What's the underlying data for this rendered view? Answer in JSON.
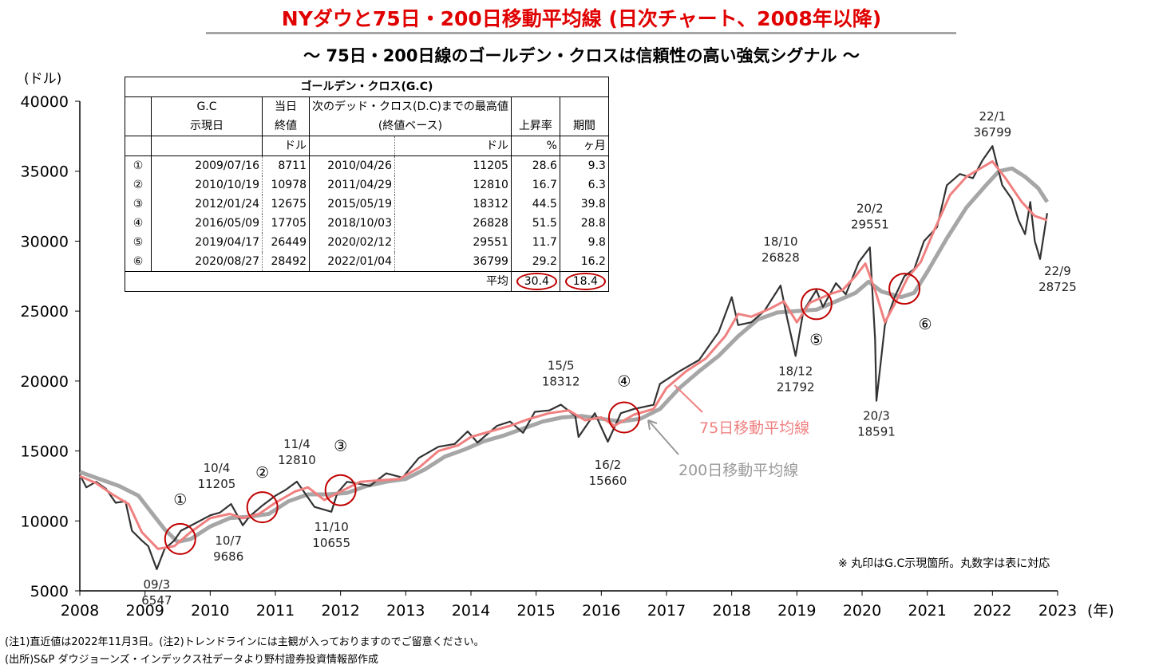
{
  "header": {
    "title": "NYダウと75日・200日移動平均線 (日次チャート、2008年以降)",
    "subtitle": "～ 75日・200日線のゴールデン・クロスは信頼性の高い強気シグナル ～"
  },
  "table": {
    "caption": "ゴールデン・クロス(G.C)",
    "h_gc": "G.C",
    "h_gc2": "示現日",
    "h_close": "当日",
    "h_close2": "終値",
    "h_high": "次のデッド・クロス(D.C)までの最高値",
    "h_high2": "(終値ベース)",
    "h_rise": "上昇率",
    "h_period": "期間",
    "u_doru1": "ドル",
    "u_doru2": "ドル",
    "u_pct": "%",
    "u_month": "ヶ月",
    "rows": [
      {
        "no": "①",
        "date": "2009/07/16",
        "close": "8711",
        "hdate": "2010/04/26",
        "high": "11205",
        "rise": "28.6",
        "months": "9.3"
      },
      {
        "no": "②",
        "date": "2010/10/19",
        "close": "10978",
        "hdate": "2011/04/29",
        "high": "12810",
        "rise": "16.7",
        "months": "6.3"
      },
      {
        "no": "③",
        "date": "2012/01/24",
        "close": "12675",
        "hdate": "2015/05/19",
        "high": "18312",
        "rise": "44.5",
        "months": "39.8"
      },
      {
        "no": "④",
        "date": "2016/05/09",
        "close": "17705",
        "hdate": "2018/10/03",
        "high": "26828",
        "rise": "51.5",
        "months": "28.8"
      },
      {
        "no": "⑤",
        "date": "2019/04/17",
        "close": "26449",
        "hdate": "2020/02/12",
        "high": "29551",
        "rise": "11.7",
        "months": "9.8"
      },
      {
        "no": "⑥",
        "date": "2020/08/27",
        "close": "28492",
        "hdate": "2022/01/04",
        "high": "36799",
        "rise": "29.2",
        "months": "16.2"
      }
    ],
    "avg_label": "平均",
    "avg_rise": "30.4",
    "avg_months": "18.4"
  },
  "chart_data": {
    "type": "line",
    "ylabel": "(ドル)",
    "xlabel": "(年)",
    "ylim": [
      5000,
      40000
    ],
    "yticks": [
      "5000",
      "10000",
      "15000",
      "20000",
      "25000",
      "30000",
      "35000",
      "40000"
    ],
    "xlim": [
      2008,
      2023
    ],
    "xticks": [
      "2008",
      "2009",
      "2010",
      "2011",
      "2012",
      "2013",
      "2014",
      "2015",
      "2016",
      "2017",
      "2018",
      "2019",
      "2020",
      "2021",
      "2022",
      "2023"
    ],
    "grid": false,
    "series": [
      {
        "name": "75日移動平均線",
        "color": "#f08080",
        "points": [
          [
            2008.0,
            13200
          ],
          [
            2008.25,
            12700
          ],
          [
            2008.5,
            11900
          ],
          [
            2008.75,
            11200
          ],
          [
            2008.95,
            9200
          ],
          [
            2009.2,
            8000
          ],
          [
            2009.45,
            8200
          ],
          [
            2009.7,
            9200
          ],
          [
            2010.0,
            10200
          ],
          [
            2010.3,
            10500
          ],
          [
            2010.5,
            10200
          ],
          [
            2010.75,
            10500
          ],
          [
            2011.0,
            11300
          ],
          [
            2011.3,
            12100
          ],
          [
            2011.5,
            12400
          ],
          [
            2011.75,
            11500
          ],
          [
            2012.0,
            12100
          ],
          [
            2012.3,
            12800
          ],
          [
            2012.6,
            12900
          ],
          [
            2012.9,
            13000
          ],
          [
            2013.2,
            13800
          ],
          [
            2013.5,
            15000
          ],
          [
            2013.8,
            15400
          ],
          [
            2014.0,
            16000
          ],
          [
            2014.3,
            16400
          ],
          [
            2014.6,
            16800
          ],
          [
            2014.9,
            17300
          ],
          [
            2015.2,
            17700
          ],
          [
            2015.5,
            17900
          ],
          [
            2015.75,
            17200
          ],
          [
            2016.0,
            17400
          ],
          [
            2016.2,
            16800
          ],
          [
            2016.5,
            17600
          ],
          [
            2016.8,
            18000
          ],
          [
            2017.0,
            19500
          ],
          [
            2017.3,
            20700
          ],
          [
            2017.6,
            21600
          ],
          [
            2017.9,
            23200
          ],
          [
            2018.1,
            24800
          ],
          [
            2018.3,
            24600
          ],
          [
            2018.6,
            25200
          ],
          [
            2018.8,
            25700
          ],
          [
            2019.0,
            24200
          ],
          [
            2019.2,
            25600
          ],
          [
            2019.5,
            26200
          ],
          [
            2019.7,
            26500
          ],
          [
            2019.9,
            27500
          ],
          [
            2020.05,
            28400
          ],
          [
            2020.2,
            26500
          ],
          [
            2020.35,
            24200
          ],
          [
            2020.5,
            25500
          ],
          [
            2020.7,
            27400
          ],
          [
            2020.9,
            28500
          ],
          [
            2021.1,
            30700
          ],
          [
            2021.35,
            33300
          ],
          [
            2021.6,
            34600
          ],
          [
            2021.85,
            35300
          ],
          [
            2022.0,
            35700
          ],
          [
            2022.2,
            34500
          ],
          [
            2022.45,
            32800
          ],
          [
            2022.65,
            31800
          ],
          [
            2022.84,
            31500
          ]
        ]
      },
      {
        "name": "200日移動平均線",
        "color": "#a6a6a6",
        "points": [
          [
            2008.0,
            13500
          ],
          [
            2008.3,
            13000
          ],
          [
            2008.6,
            12500
          ],
          [
            2008.9,
            11800
          ],
          [
            2009.1,
            10600
          ],
          [
            2009.3,
            9400
          ],
          [
            2009.5,
            8500
          ],
          [
            2009.7,
            8700
          ],
          [
            2010.0,
            9600
          ],
          [
            2010.3,
            10200
          ],
          [
            2010.6,
            10300
          ],
          [
            2010.9,
            10500
          ],
          [
            2011.2,
            11400
          ],
          [
            2011.5,
            11900
          ],
          [
            2011.8,
            11900
          ],
          [
            2012.1,
            12000
          ],
          [
            2012.4,
            12500
          ],
          [
            2012.7,
            12800
          ],
          [
            2013.0,
            13000
          ],
          [
            2013.3,
            13700
          ],
          [
            2013.6,
            14600
          ],
          [
            2013.9,
            15100
          ],
          [
            2014.2,
            15700
          ],
          [
            2014.5,
            16100
          ],
          [
            2014.8,
            16600
          ],
          [
            2015.1,
            17100
          ],
          [
            2015.4,
            17400
          ],
          [
            2015.7,
            17500
          ],
          [
            2016.0,
            17300
          ],
          [
            2016.3,
            17100
          ],
          [
            2016.6,
            17300
          ],
          [
            2016.9,
            18000
          ],
          [
            2017.2,
            19500
          ],
          [
            2017.5,
            20700
          ],
          [
            2017.8,
            21800
          ],
          [
            2018.1,
            23200
          ],
          [
            2018.4,
            24400
          ],
          [
            2018.7,
            24900
          ],
          [
            2019.0,
            25000
          ],
          [
            2019.3,
            25100
          ],
          [
            2019.6,
            25700
          ],
          [
            2019.9,
            26300
          ],
          [
            2020.1,
            27100
          ],
          [
            2020.3,
            26400
          ],
          [
            2020.6,
            26000
          ],
          [
            2020.8,
            26300
          ],
          [
            2021.0,
            27800
          ],
          [
            2021.3,
            30200
          ],
          [
            2021.6,
            32400
          ],
          [
            2021.9,
            34000
          ],
          [
            2022.1,
            35000
          ],
          [
            2022.3,
            35200
          ],
          [
            2022.5,
            34600
          ],
          [
            2022.7,
            33800
          ],
          [
            2022.84,
            32800
          ]
        ]
      },
      {
        "name": "NYダウ",
        "color": "#333333",
        "points": [
          [
            2008.0,
            13300
          ],
          [
            2008.1,
            12400
          ],
          [
            2008.25,
            12800
          ],
          [
            2008.4,
            12300
          ],
          [
            2008.55,
            11300
          ],
          [
            2008.7,
            11400
          ],
          [
            2008.8,
            9300
          ],
          [
            2008.95,
            8600
          ],
          [
            2009.05,
            8200
          ],
          [
            2009.18,
            6547
          ],
          [
            2009.3,
            8000
          ],
          [
            2009.45,
            8600
          ],
          [
            2009.55,
            9300
          ],
          [
            2009.8,
            9900
          ],
          [
            2010.0,
            10400
          ],
          [
            2010.15,
            10600
          ],
          [
            2010.32,
            11205
          ],
          [
            2010.5,
            9686
          ],
          [
            2010.6,
            10300
          ],
          [
            2010.8,
            11100
          ],
          [
            2011.0,
            11800
          ],
          [
            2011.15,
            12200
          ],
          [
            2011.33,
            12810
          ],
          [
            2011.6,
            11000
          ],
          [
            2011.86,
            10655
          ],
          [
            2011.95,
            12000
          ],
          [
            2012.1,
            12800
          ],
          [
            2012.35,
            12600
          ],
          [
            2012.45,
            12500
          ],
          [
            2012.7,
            13400
          ],
          [
            2012.95,
            13100
          ],
          [
            2013.2,
            14500
          ],
          [
            2013.5,
            15300
          ],
          [
            2013.75,
            15500
          ],
          [
            2013.95,
            16400
          ],
          [
            2014.1,
            15600
          ],
          [
            2014.4,
            16800
          ],
          [
            2014.6,
            17100
          ],
          [
            2014.8,
            16300
          ],
          [
            2014.98,
            17800
          ],
          [
            2015.2,
            17900
          ],
          [
            2015.38,
            18312
          ],
          [
            2015.6,
            17500
          ],
          [
            2015.65,
            16000
          ],
          [
            2015.9,
            17700
          ],
          [
            2016.1,
            15660
          ],
          [
            2016.3,
            17700
          ],
          [
            2016.5,
            18000
          ],
          [
            2016.8,
            18300
          ],
          [
            2016.9,
            19800
          ],
          [
            2017.2,
            20700
          ],
          [
            2017.5,
            21500
          ],
          [
            2017.8,
            23500
          ],
          [
            2018.0,
            26000
          ],
          [
            2018.1,
            24000
          ],
          [
            2018.3,
            24200
          ],
          [
            2018.5,
            25000
          ],
          [
            2018.75,
            26828
          ],
          [
            2018.85,
            24500
          ],
          [
            2018.98,
            21792
          ],
          [
            2019.1,
            25000
          ],
          [
            2019.3,
            26500
          ],
          [
            2019.4,
            25300
          ],
          [
            2019.6,
            27000
          ],
          [
            2019.75,
            26200
          ],
          [
            2019.95,
            28500
          ],
          [
            2020.12,
            29551
          ],
          [
            2020.2,
            23000
          ],
          [
            2020.22,
            18591
          ],
          [
            2020.35,
            24000
          ],
          [
            2020.5,
            26000
          ],
          [
            2020.65,
            27500
          ],
          [
            2020.8,
            28000
          ],
          [
            2020.95,
            30000
          ],
          [
            2021.15,
            31000
          ],
          [
            2021.3,
            34000
          ],
          [
            2021.5,
            34800
          ],
          [
            2021.7,
            34500
          ],
          [
            2021.85,
            35800
          ],
          [
            2022.0,
            36799
          ],
          [
            2022.15,
            34000
          ],
          [
            2022.3,
            33000
          ],
          [
            2022.4,
            31500
          ],
          [
            2022.5,
            30500
          ],
          [
            2022.58,
            32800
          ],
          [
            2022.65,
            30000
          ],
          [
            2022.73,
            28725
          ],
          [
            2022.84,
            32000
          ]
        ]
      }
    ],
    "annotations": [
      {
        "date": "09/3",
        "value": "6547",
        "x": 2009.18,
        "y": 6547
      },
      {
        "date": "10/4",
        "value": "11205",
        "x": 2010.32,
        "y": 11205
      },
      {
        "date": "10/7",
        "value": "9686",
        "x": 2010.5,
        "y": 9686
      },
      {
        "date": "11/4",
        "value": "12810",
        "x": 2011.33,
        "y": 12810
      },
      {
        "date": "11/10",
        "value": "10655",
        "x": 2011.86,
        "y": 10655
      },
      {
        "date": "15/5",
        "value": "18312",
        "x": 2015.38,
        "y": 18312
      },
      {
        "date": "16/2",
        "value": "15660",
        "x": 2016.1,
        "y": 15660
      },
      {
        "date": "18/10",
        "value": "26828",
        "x": 2018.75,
        "y": 26828
      },
      {
        "date": "18/12",
        "value": "21792",
        "x": 2018.98,
        "y": 21792
      },
      {
        "date": "20/2",
        "value": "29551",
        "x": 2020.12,
        "y": 29551
      },
      {
        "date": "20/3",
        "value": "18591",
        "x": 2020.22,
        "y": 18591
      },
      {
        "date": "22/1",
        "value": "36799",
        "x": 2022.0,
        "y": 36799
      },
      {
        "date": "22/9",
        "value": "28725",
        "x": 2022.73,
        "y": 28725
      }
    ],
    "gc_markers": [
      {
        "label": "①",
        "x": 2009.54,
        "y": 8711
      },
      {
        "label": "②",
        "x": 2010.8,
        "y": 10978
      },
      {
        "label": "③",
        "x": 2012.0,
        "y": 12200
      },
      {
        "label": "④",
        "x": 2016.35,
        "y": 17400
      },
      {
        "label": "⑤",
        "x": 2019.3,
        "y": 25500
      },
      {
        "label": "⑥",
        "x": 2020.65,
        "y": 26600
      }
    ],
    "series_labels": {
      "ma75": "75日移動平均線",
      "ma200": "200日移動平均線"
    },
    "legend_note": "※ 丸印はG.C示現箇所。丸数字は表に対応"
  },
  "notes": {
    "note1": "(注1)直近値は2022年11月3日。(注2)トレンドラインには主観が入っておりますのでご留意ください。",
    "source": "(出所)S&P ダウジョーンズ・インデックス社データより野村證券投資情報部作成"
  }
}
